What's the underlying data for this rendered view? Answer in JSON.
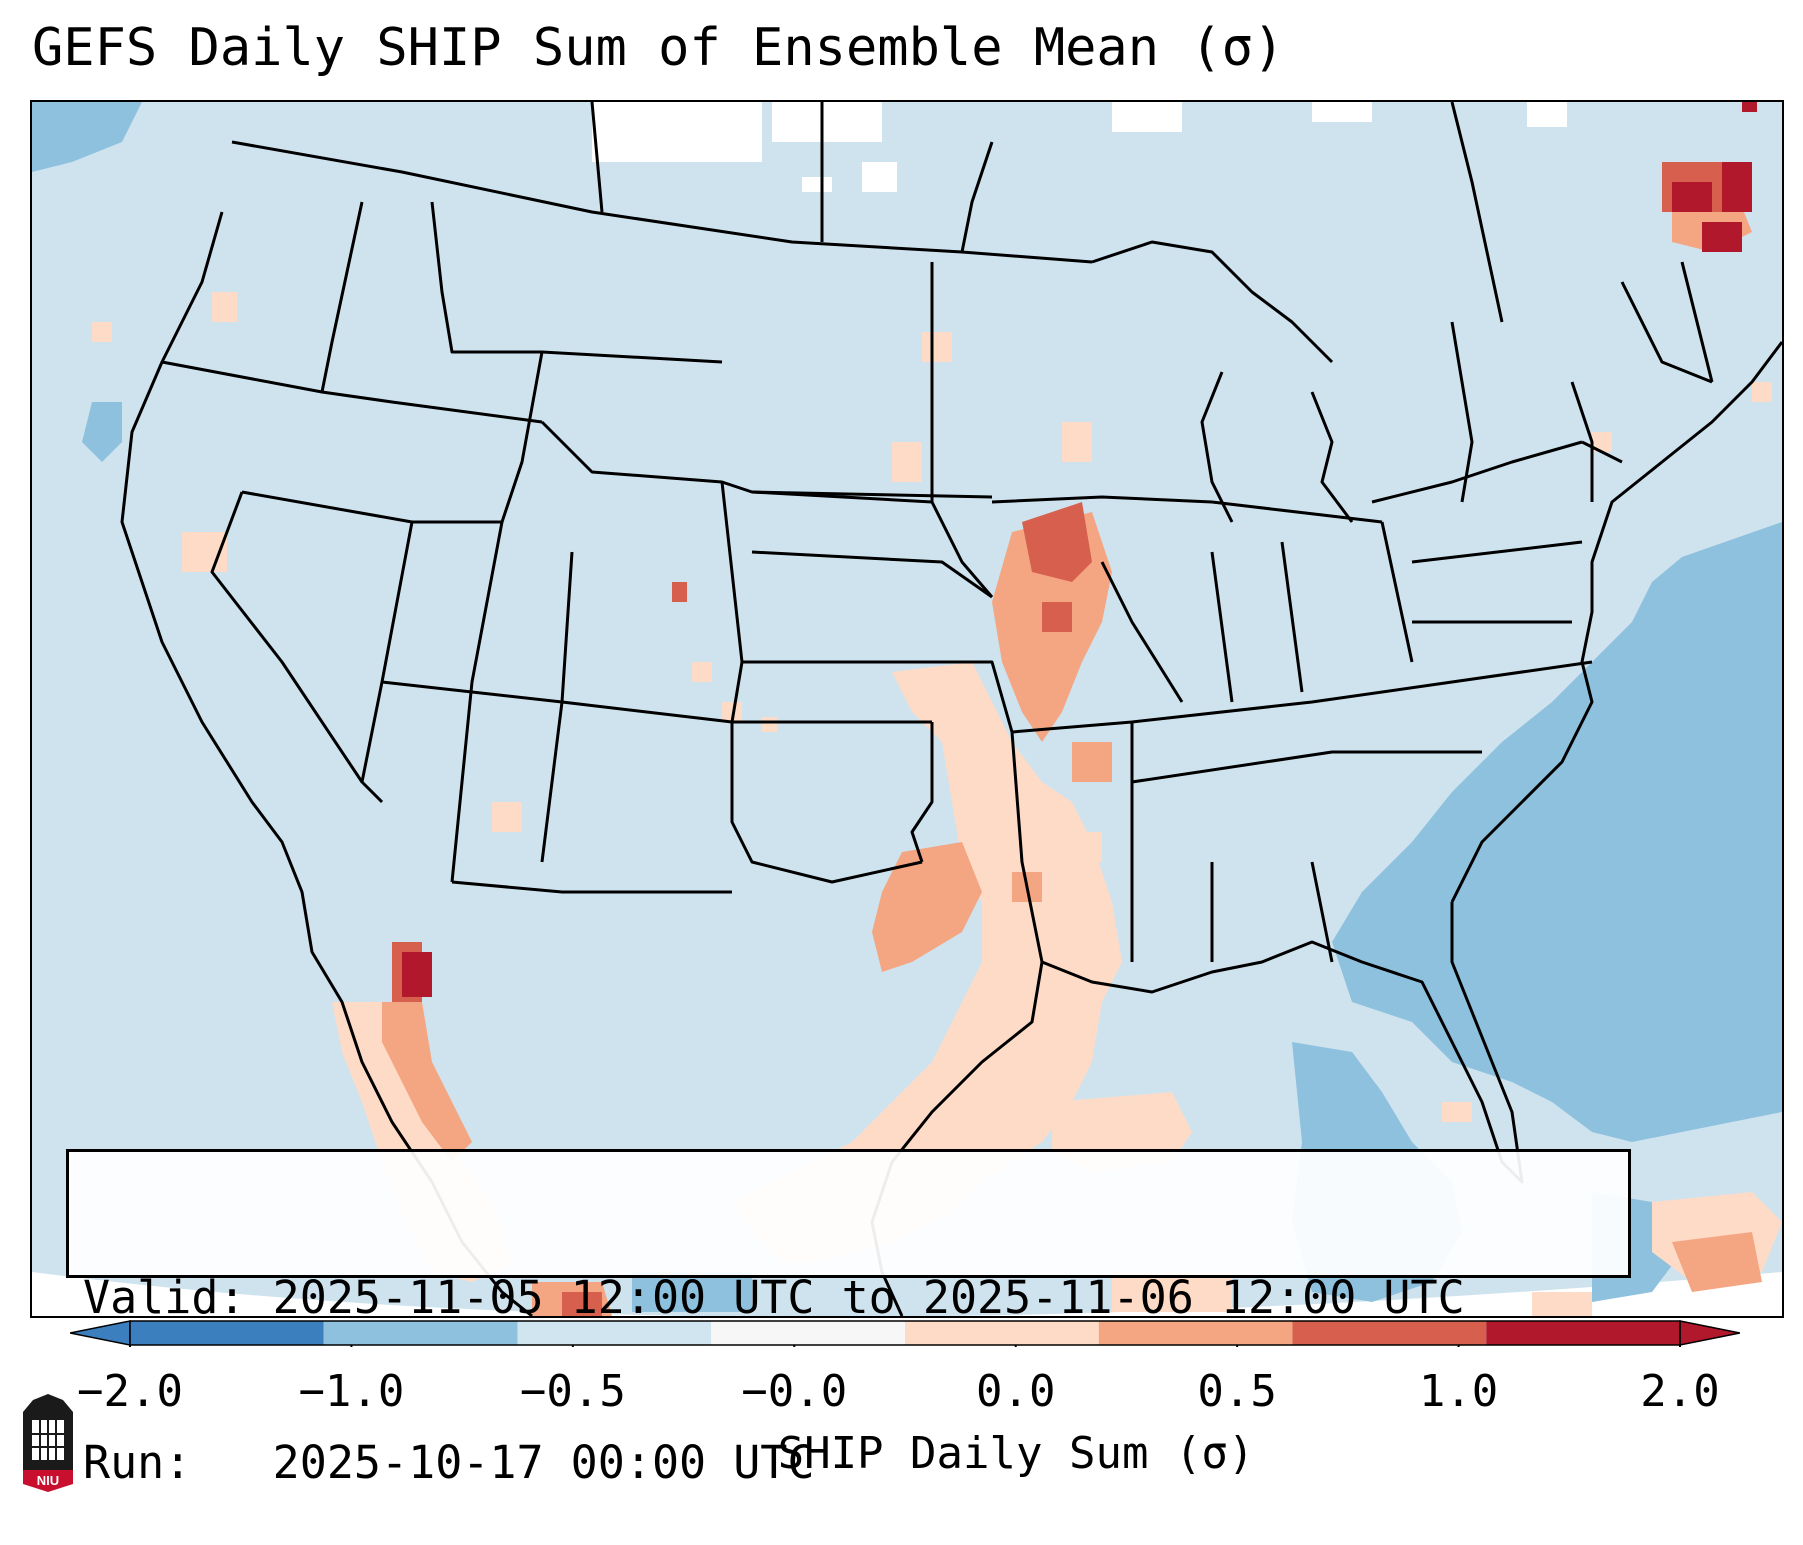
{
  "title": "GEFS Daily SHIP Sum of Ensemble Mean (σ)",
  "info": {
    "valid_line": "Valid: 2025-11-05 12:00 UTC to 2025-11-06 12:00 UTC",
    "run_line": "Run:   2025-10-17 00:00 UTC"
  },
  "colorbar": {
    "label": "SHIP Daily Sum (σ)",
    "ticks": [
      "−2.0",
      "−1.0",
      "−0.5",
      "−0.0",
      "0.0",
      "0.5",
      "1.0",
      "2.0"
    ],
    "colors": [
      "#3b7fbf",
      "#8ec1de",
      "#d1e5f0",
      "#f7f7f7",
      "#fddbc7",
      "#f4a582",
      "#d6604d",
      "#b2182b"
    ]
  },
  "logo": {
    "text": "NIU"
  },
  "colors": {
    "land_neutral": "#cfe3ef",
    "ocean_negative": "#8ec1de",
    "positive_light": "#fddbc7",
    "positive_mid": "#f4a582",
    "positive_strong": "#d6604d",
    "positive_max": "#b2182b"
  }
}
